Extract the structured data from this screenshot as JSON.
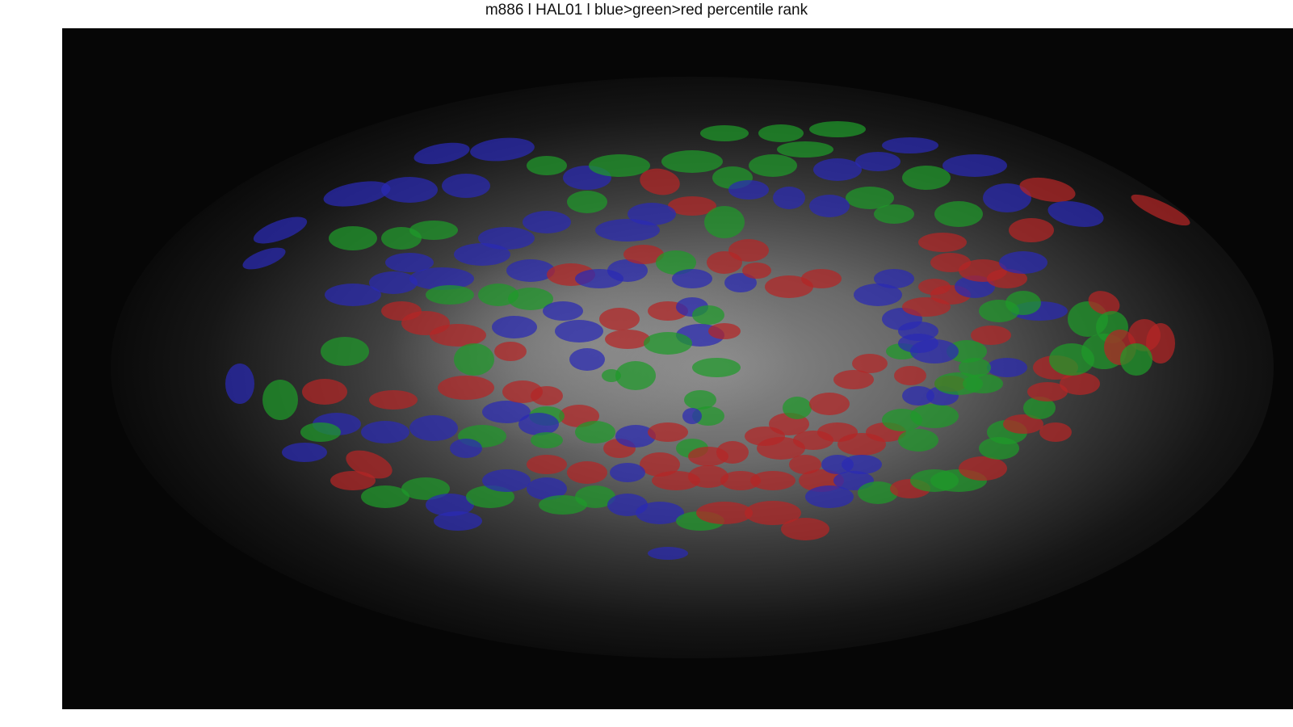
{
  "figure": {
    "title": "m886 l HAL01 l blue>green>red percentile rank"
  },
  "image": {
    "depicts": "grayscale two-photon field of view with colored cell ROI overlays",
    "overlay_colors": {
      "low_rank": "#2a2ab4",
      "mid_rank": "#1f9a2a",
      "high_rank": "#b42626"
    }
  }
}
